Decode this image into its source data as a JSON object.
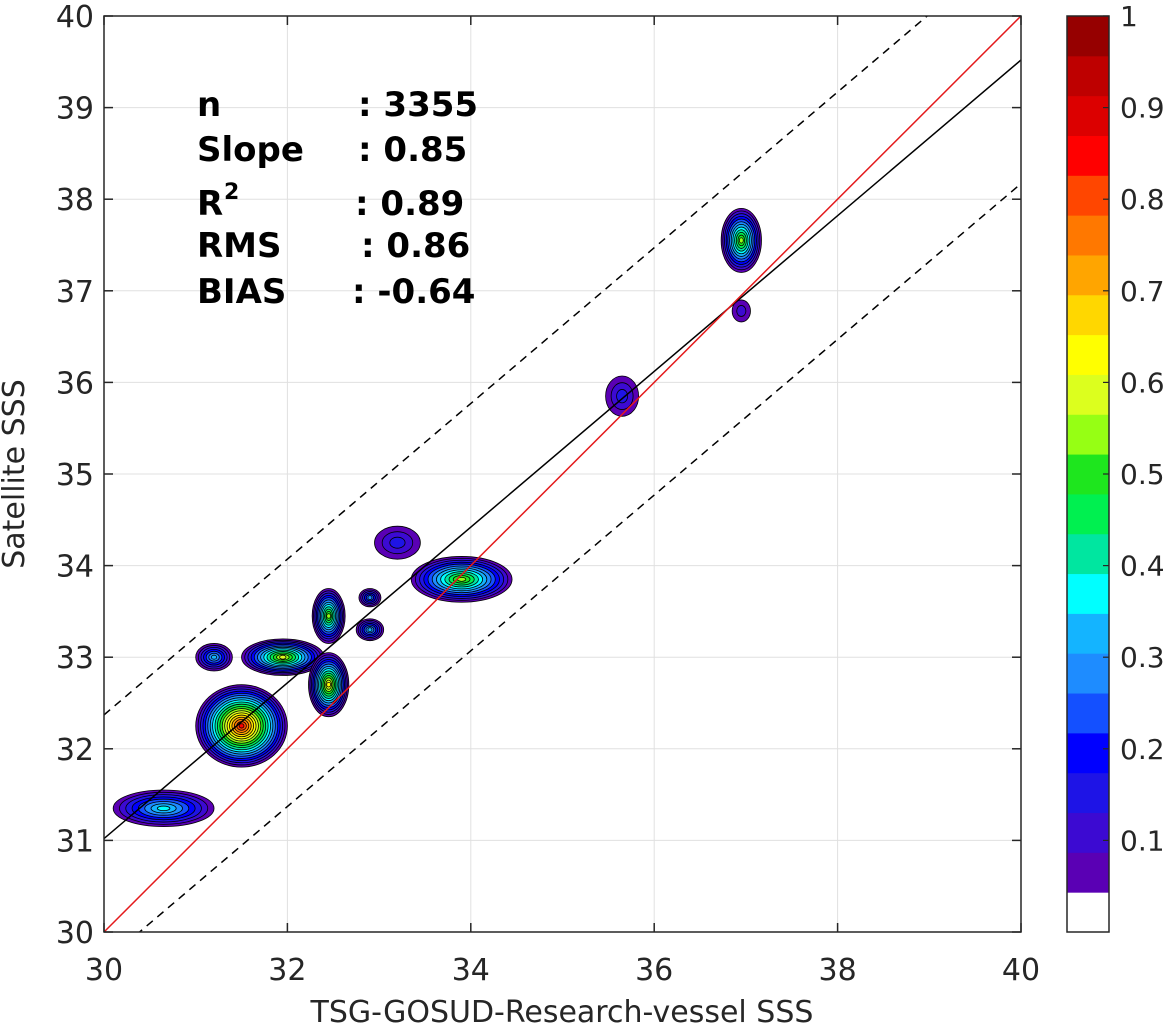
{
  "chart_data": {
    "type": "contour",
    "xlabel": "TSG-GOSUD-Research-vessel SSS",
    "ylabel": "Satellite SSS",
    "xlim": [
      30,
      40
    ],
    "ylim": [
      30,
      40
    ],
    "x_ticks": [
      "30",
      "32",
      "34",
      "36",
      "38",
      "40"
    ],
    "y_ticks": [
      "30",
      "31",
      "32",
      "33",
      "34",
      "35",
      "36",
      "37",
      "38",
      "39",
      "40"
    ],
    "grid": true,
    "stats": [
      {
        "label": "n",
        "value": ": 3355"
      },
      {
        "label": "Slope",
        "value": ": 0.85"
      },
      {
        "label": "R",
        "sup": "2",
        "value": ": 0.89"
      },
      {
        "label": "RMS",
        "value": ": 0.86"
      },
      {
        "label": "BIAS",
        "value": ": -0.64"
      }
    ],
    "lines": {
      "identity": {
        "slope": 1.0,
        "intercept": 0.0,
        "color": "#e41a1c"
      },
      "regression": {
        "slope": 0.85,
        "intercept": 5.52,
        "color": "#000000"
      },
      "upper_bound": {
        "slope": 0.85,
        "intercept": 6.87,
        "style": "dashed"
      },
      "lower_bound": {
        "slope": 0.85,
        "intercept": 4.17,
        "style": "dashed"
      }
    },
    "density_blobs": [
      {
        "cx": 30.65,
        "cy": 31.35,
        "rx": 0.55,
        "ry": 0.2,
        "peak": 0.37
      },
      {
        "cx": 31.5,
        "cy": 32.25,
        "rx": 0.5,
        "ry": 0.45,
        "peak": 0.86
      },
      {
        "cx": 31.95,
        "cy": 33.0,
        "rx": 0.45,
        "ry": 0.2,
        "peak": 0.57
      },
      {
        "cx": 32.45,
        "cy": 32.7,
        "rx": 0.22,
        "ry": 0.35,
        "peak": 0.62
      },
      {
        "cx": 32.45,
        "cy": 33.45,
        "rx": 0.18,
        "ry": 0.3,
        "peak": 0.55
      },
      {
        "cx": 31.2,
        "cy": 33.0,
        "rx": 0.2,
        "ry": 0.15,
        "peak": 0.3
      },
      {
        "cx": 32.9,
        "cy": 33.3,
        "rx": 0.15,
        "ry": 0.12,
        "peak": 0.3
      },
      {
        "cx": 32.9,
        "cy": 33.65,
        "rx": 0.12,
        "ry": 0.1,
        "peak": 0.25
      },
      {
        "cx": 33.2,
        "cy": 34.25,
        "rx": 0.25,
        "ry": 0.18,
        "peak": 0.12
      },
      {
        "cx": 33.9,
        "cy": 33.85,
        "rx": 0.55,
        "ry": 0.25,
        "peak": 0.56
      },
      {
        "cx": 35.65,
        "cy": 35.85,
        "rx": 0.18,
        "ry": 0.22,
        "peak": 0.13
      },
      {
        "cx": 36.95,
        "cy": 37.55,
        "rx": 0.22,
        "ry": 0.35,
        "peak": 0.56
      },
      {
        "cx": 36.95,
        "cy": 36.78,
        "rx": 0.1,
        "ry": 0.12,
        "peak": 0.1
      }
    ],
    "colorbar": {
      "ticks": [
        "0.1",
        "0.2",
        "0.3",
        "0.4",
        "0.5",
        "0.6",
        "0.7",
        "0.8",
        "0.9",
        "1"
      ],
      "levels": 22,
      "colors": [
        "#ffffff",
        "#5a00b4",
        "#3c0ad2",
        "#1e14e6",
        "#0000ff",
        "#1450ff",
        "#1e8cff",
        "#14b4ff",
        "#00ffff",
        "#00e6a0",
        "#00f050",
        "#1ee61e",
        "#96ff14",
        "#dcff1e",
        "#ffff00",
        "#ffd700",
        "#ffa500",
        "#ff7800",
        "#ff4600",
        "#ff0000",
        "#dc0000",
        "#be0000",
        "#960000"
      ]
    }
  }
}
